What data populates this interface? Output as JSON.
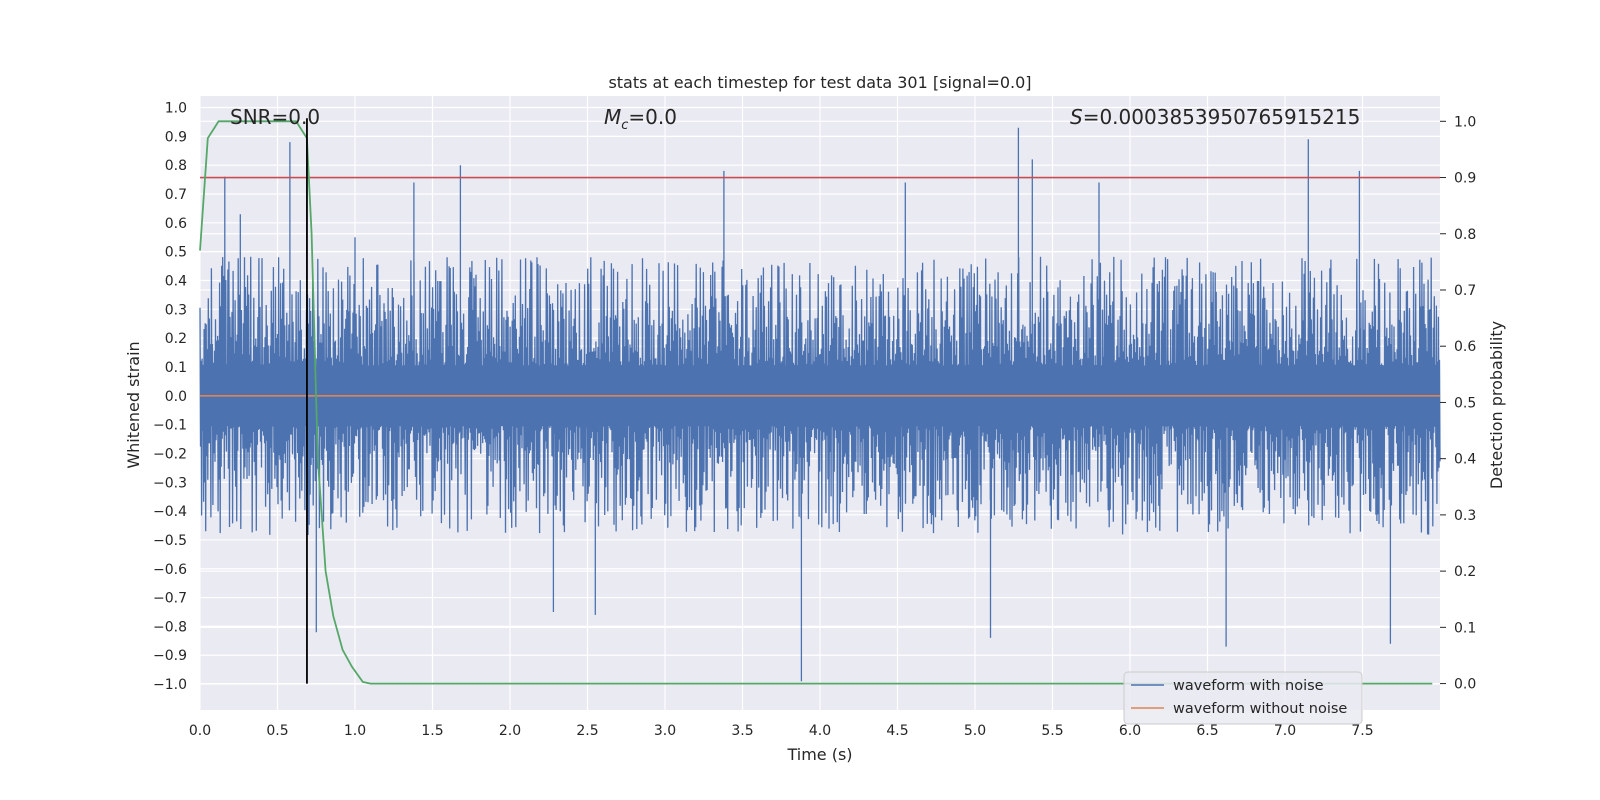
{
  "chart_data": {
    "type": "line",
    "title": "stats at each timestep for test data 301 [signal=0.0]",
    "xlabel": "Time (s)",
    "ylabel": "Whitened strain",
    "y2label": "Detection probability",
    "xlim": [
      0.0,
      8.0
    ],
    "ylim": [
      -1.09,
      1.04
    ],
    "y2lim": [
      -0.047,
      1.045
    ],
    "x_ticks": [
      "0.0",
      "0.5",
      "1.0",
      "1.5",
      "2.0",
      "2.5",
      "3.0",
      "3.5",
      "4.0",
      "4.5",
      "5.0",
      "5.5",
      "6.0",
      "6.5",
      "7.0",
      "7.5"
    ],
    "y_ticks": [
      "1.0",
      "0.9",
      "0.8",
      "0.7",
      "0.6",
      "0.5",
      "0.4",
      "0.3",
      "0.2",
      "0.1",
      "0.0",
      "−0.1",
      "−0.2",
      "−0.3",
      "−0.4",
      "−0.5",
      "−0.6",
      "−0.7",
      "−0.8",
      "−0.9",
      "−1.0"
    ],
    "y2_ticks": [
      "1.0",
      "0.9",
      "0.8",
      "0.7",
      "0.6",
      "0.5",
      "0.4",
      "0.3",
      "0.2",
      "0.1",
      "0.0"
    ],
    "grid": true,
    "annotations": {
      "snr": "SNR=0.0",
      "mc_symbol": "M",
      "mc_sub": "c",
      "mc_value": "=0.0",
      "s_symbol": "S",
      "s_value": "=0.0003853950765915215"
    },
    "threshold_y2": 0.9,
    "marker_x": 0.69,
    "series": [
      {
        "name": "waveform with noise",
        "color": "#4c72b0",
        "x_range": [
          0.0,
          8.0
        ],
        "typical_range": [
          -0.42,
          0.42
        ],
        "spikes": [
          [
            0.16,
            0.76
          ],
          [
            0.26,
            0.63
          ],
          [
            0.58,
            0.88
          ],
          [
            0.69,
            0.86
          ],
          [
            0.75,
            -0.82
          ],
          [
            1.0,
            0.55
          ],
          [
            1.38,
            0.74
          ],
          [
            1.68,
            0.8
          ],
          [
            2.28,
            -0.75
          ],
          [
            2.55,
            -0.76
          ],
          [
            3.38,
            0.78
          ],
          [
            3.88,
            -0.99
          ],
          [
            4.55,
            0.74
          ],
          [
            5.1,
            -0.84
          ],
          [
            5.28,
            0.93
          ],
          [
            5.37,
            0.82
          ],
          [
            5.8,
            0.74
          ],
          [
            6.62,
            -0.87
          ],
          [
            7.15,
            0.89
          ],
          [
            7.48,
            0.78
          ],
          [
            7.68,
            -0.86
          ]
        ]
      },
      {
        "name": "waveform without noise",
        "color": "#dd8452",
        "x": [
          0.0,
          8.0
        ],
        "y": [
          0.0,
          0.0
        ]
      },
      {
        "color": "#55a868",
        "axis": "y2",
        "x": [
          0.0,
          0.05,
          0.12,
          0.2,
          0.3,
          0.4,
          0.5,
          0.62,
          0.69,
          0.72,
          0.76,
          0.81,
          0.86,
          0.92,
          0.98,
          1.05,
          1.1,
          7.95
        ],
        "y": [
          0.77,
          0.97,
          1.0,
          1.0,
          1.0,
          1.0,
          1.0,
          1.0,
          0.97,
          0.8,
          0.4,
          0.2,
          0.12,
          0.06,
          0.03,
          0.003,
          0.0,
          0.0
        ]
      }
    ],
    "legend_placement": "bottom-right"
  }
}
